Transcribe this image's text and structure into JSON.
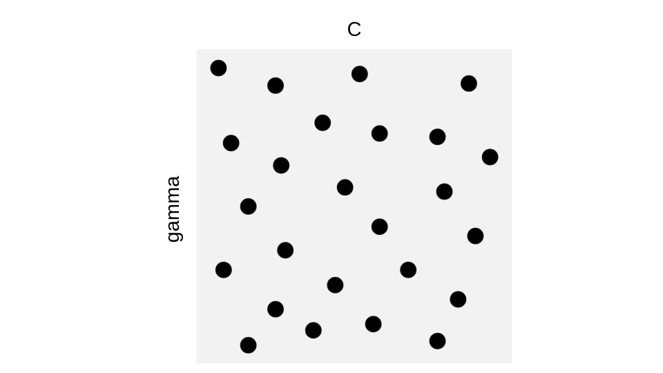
{
  "colors": {
    "panel": "#f2f2f2",
    "point": "#000000",
    "background": "#ffffff"
  },
  "chart_data": {
    "type": "scatter",
    "title": "",
    "xlabel": "C",
    "ylabel": "gamma",
    "xlabel_position": "top",
    "grid": false,
    "legend": "none",
    "xlim": [
      0,
      1
    ],
    "ylim": [
      0,
      1
    ],
    "points": [
      {
        "x": 0.045,
        "y": 0.964
      },
      {
        "x": 0.236,
        "y": 0.905
      },
      {
        "x": 0.518,
        "y": 0.944
      },
      {
        "x": 0.884,
        "y": 0.912
      },
      {
        "x": 0.394,
        "y": 0.78
      },
      {
        "x": 0.585,
        "y": 0.744
      },
      {
        "x": 0.779,
        "y": 0.733
      },
      {
        "x": 0.087,
        "y": 0.712
      },
      {
        "x": 0.955,
        "y": 0.665
      },
      {
        "x": 0.255,
        "y": 0.637
      },
      {
        "x": 0.469,
        "y": 0.563
      },
      {
        "x": 0.802,
        "y": 0.549
      },
      {
        "x": 0.145,
        "y": 0.499
      },
      {
        "x": 0.585,
        "y": 0.431
      },
      {
        "x": 0.906,
        "y": 0.4
      },
      {
        "x": 0.269,
        "y": 0.352
      },
      {
        "x": 0.062,
        "y": 0.286
      },
      {
        "x": 0.681,
        "y": 0.286
      },
      {
        "x": 0.436,
        "y": 0.235
      },
      {
        "x": 0.848,
        "y": 0.187
      },
      {
        "x": 0.236,
        "y": 0.154
      },
      {
        "x": 0.564,
        "y": 0.104
      },
      {
        "x": 0.363,
        "y": 0.083
      },
      {
        "x": 0.145,
        "y": 0.033
      },
      {
        "x": 0.779,
        "y": 0.047
      }
    ]
  }
}
